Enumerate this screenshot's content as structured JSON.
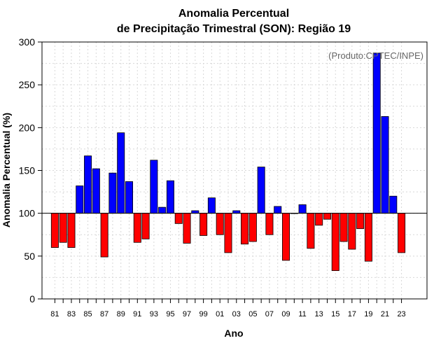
{
  "chart_data": {
    "type": "bar",
    "title_line1": "Anomalia Percentual",
    "title_line2": "de Precipitação Trimestral (SON): Região 19",
    "xlabel": "Ano",
    "ylabel": "Anomalia Percentual (%)",
    "credit": "(Produto:CPTEC/INPE)",
    "baseline": 100,
    "ylim": [
      0,
      300
    ],
    "yticks": [
      0,
      50,
      100,
      150,
      200,
      250,
      300
    ],
    "grid": true,
    "colors": {
      "above": "#0000ff",
      "below": "#ff0000",
      "outline": "#000000",
      "grid": "#d8d8d8"
    },
    "categories": [
      "81",
      "82",
      "83",
      "84",
      "85",
      "86",
      "87",
      "88",
      "89",
      "90",
      "91",
      "92",
      "93",
      "94",
      "95",
      "96",
      "97",
      "98",
      "99",
      "00",
      "01",
      "02",
      "03",
      "04",
      "05",
      "06",
      "07",
      "08",
      "09",
      "10",
      "11",
      "12",
      "13",
      "14",
      "15",
      "16",
      "17",
      "18",
      "19",
      "20",
      "21",
      "22",
      "23"
    ],
    "values": [
      60,
      66,
      60,
      132,
      167,
      152,
      49,
      147,
      194,
      137,
      66,
      70,
      162,
      107,
      138,
      88,
      65,
      103,
      74,
      118,
      75,
      54,
      103,
      64,
      67,
      154,
      75,
      108,
      45,
      100,
      110,
      59,
      86,
      93,
      33,
      67,
      58,
      82,
      44,
      287,
      213,
      120,
      54
    ],
    "xtick_labels": [
      "81",
      "83",
      "85",
      "87",
      "89",
      "91",
      "93",
      "95",
      "97",
      "99",
      "01",
      "03",
      "05",
      "07",
      "09",
      "11",
      "13",
      "15",
      "17",
      "19",
      "21",
      "23"
    ]
  }
}
